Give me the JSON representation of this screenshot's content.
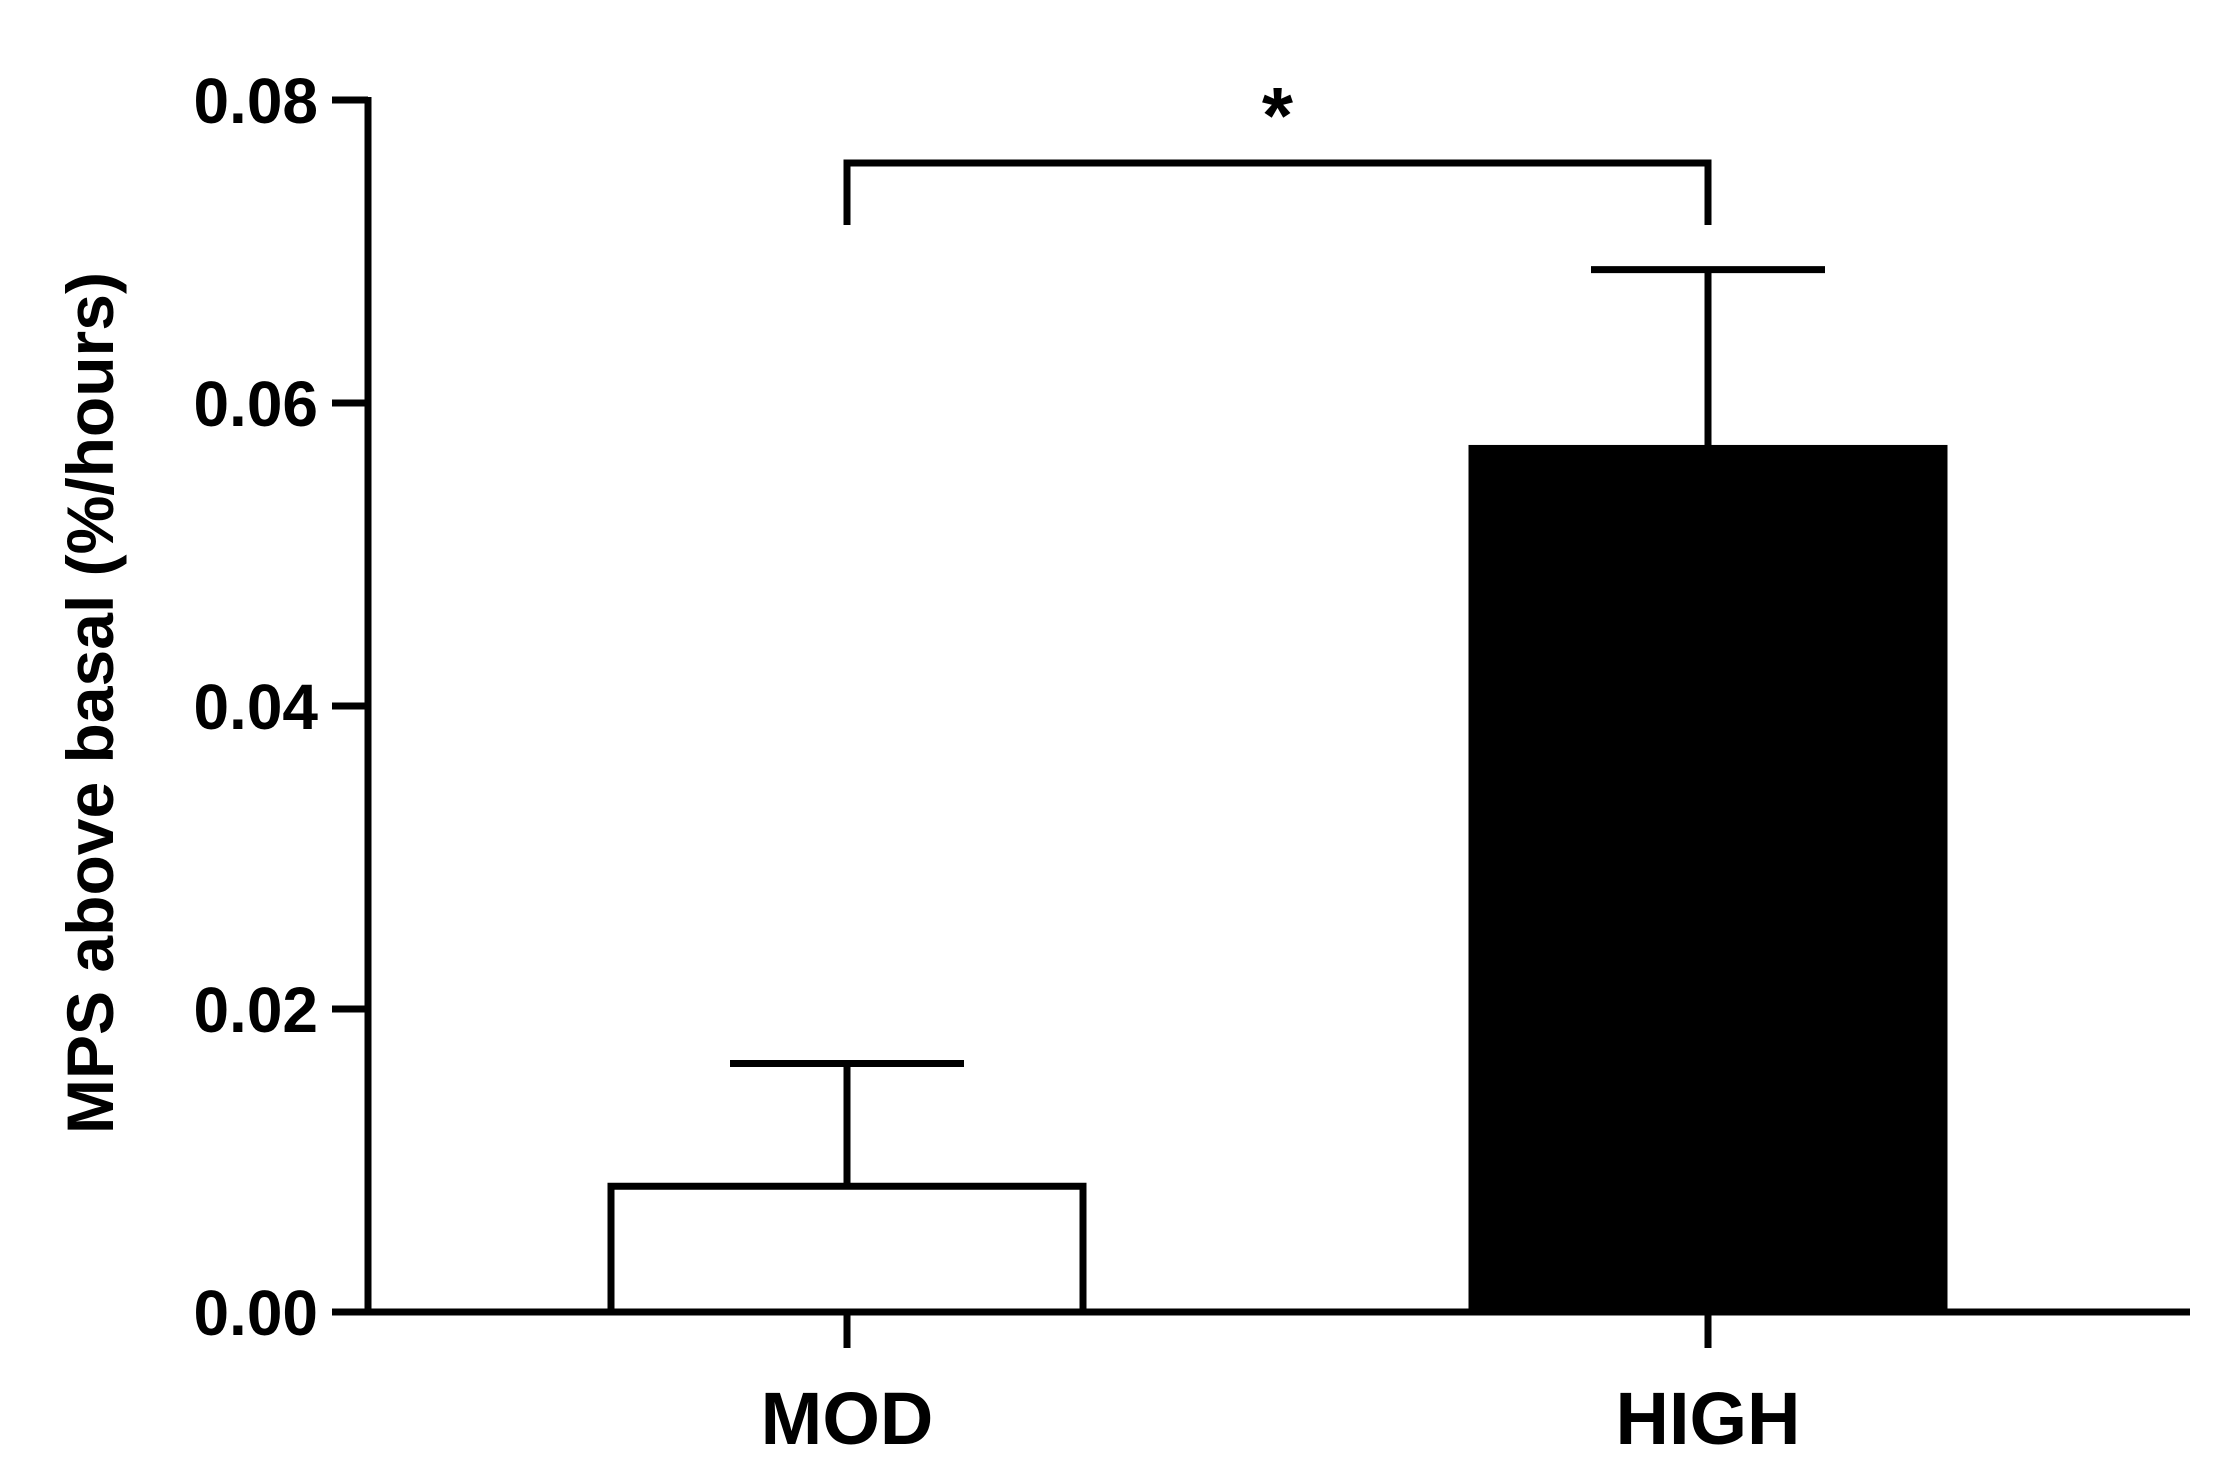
{
  "chart_data": {
    "type": "bar",
    "ylabel": "MPS above basal (%/hours)",
    "xlabel": "",
    "categories": [
      "MOD",
      "HIGH"
    ],
    "values": [
      0.0083,
      0.057
    ],
    "error_upper": [
      0.0164,
      0.0688
    ],
    "bar_fill": [
      "#ffffff",
      "#000000"
    ],
    "bar_stroke": "#000000",
    "ylim": [
      0,
      0.08
    ],
    "yticks": [
      0.0,
      0.02,
      0.04,
      0.06,
      0.08
    ],
    "ytick_labels": [
      "0.00",
      "0.02",
      "0.04",
      "0.06",
      "0.08"
    ],
    "grid": false,
    "legend": "none",
    "annotations": [
      {
        "type": "significance-bracket",
        "from": "MOD",
        "to": "HIGH",
        "label": "*"
      }
    ]
  }
}
